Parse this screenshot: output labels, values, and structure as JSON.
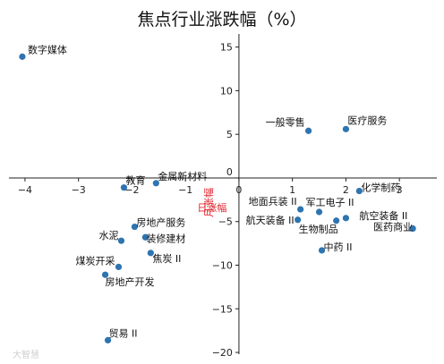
{
  "watermark": "大智慧",
  "chart_data": {
    "type": "scatter",
    "title": "焦点行业涨跌幅（%）",
    "xlabel": "日涨幅",
    "ylabel": "月涨幅",
    "xlim": [
      -4.3,
      3.7
    ],
    "ylim": [
      -20.2,
      16.5
    ],
    "xticks": [
      -4,
      -3,
      -2,
      -1,
      0,
      1,
      2,
      3
    ],
    "yticks": [
      -20,
      -15,
      -10,
      -5,
      0,
      5,
      10,
      15
    ],
    "xtick_labels": [
      "−4",
      "−3",
      "−2",
      "−1",
      "0",
      "1",
      "2",
      "3"
    ],
    "ytick_labels": [
      "−20",
      "−15",
      "−10",
      "−5",
      "0",
      "5",
      "10",
      "15"
    ],
    "point_color": "#2e74b0",
    "grid": false,
    "points": [
      {
        "name": "数字媒体",
        "x": -4.05,
        "y": 13.9
      },
      {
        "name": "医疗服务",
        "x": 2.0,
        "y": 5.6
      },
      {
        "name": "一般零售",
        "x": 1.3,
        "y": 5.4
      },
      {
        "name": "金属新材料",
        "x": -1.55,
        "y": -0.6
      },
      {
        "name": "教育",
        "x": -2.15,
        "y": -1.1
      },
      {
        "name": "化学制药",
        "x": 2.25,
        "y": -1.5
      },
      {
        "name": "地面兵装 II",
        "x": 1.15,
        "y": -3.6
      },
      {
        "name": "军工电子 II",
        "x": 1.5,
        "y": -3.9
      },
      {
        "name": "航空装备 II",
        "x": 2.0,
        "y": -4.6
      },
      {
        "name": "航天装备 II",
        "x": 1.1,
        "y": -4.8
      },
      {
        "name": "生物制品",
        "x": 1.82,
        "y": -4.9
      },
      {
        "name": "医药商业",
        "x": 3.25,
        "y": -5.8
      },
      {
        "name": "房地产服务",
        "x": -1.95,
        "y": -5.6
      },
      {
        "name": "装修建材",
        "x": -1.75,
        "y": -6.8
      },
      {
        "name": "水泥",
        "x": -2.2,
        "y": -7.2
      },
      {
        "name": "中药 II",
        "x": 1.55,
        "y": -8.3
      },
      {
        "name": "焦炭 II",
        "x": -1.65,
        "y": -8.6
      },
      {
        "name": "煤炭开采",
        "x": -2.25,
        "y": -10.2
      },
      {
        "name": "房地产开发",
        "x": -2.5,
        "y": -11.1
      },
      {
        "name": "贸易 II",
        "x": -2.45,
        "y": -18.6
      }
    ]
  }
}
